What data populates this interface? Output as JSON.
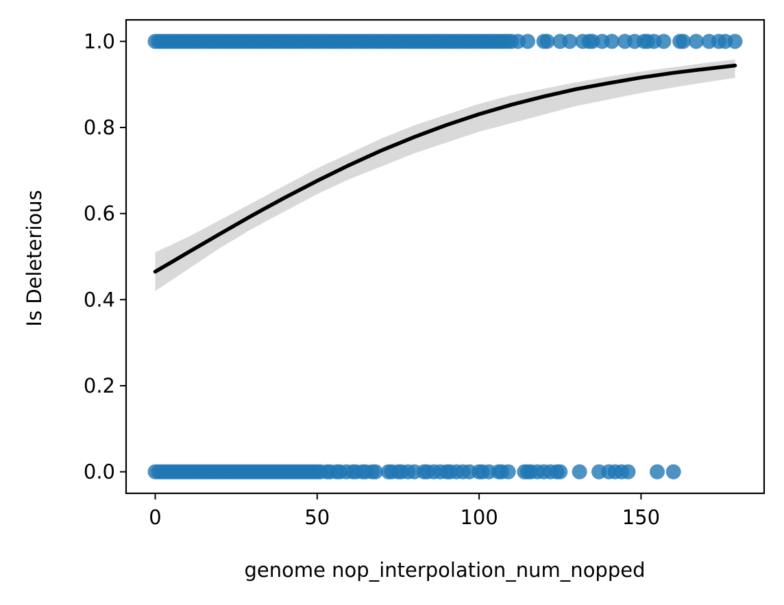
{
  "chart_data": {
    "type": "scatter",
    "title": "",
    "xlabel": "genome nop_interpolation_num_nopped",
    "ylabel": "Is Deleterious",
    "xlim": [
      -9,
      188
    ],
    "ylim": [
      -0.05,
      1.05
    ],
    "xticks": [
      0,
      50,
      100,
      150
    ],
    "xtick_labels": [
      "0",
      "50",
      "100",
      "150"
    ],
    "yticks": [
      0.0,
      0.2,
      0.4,
      0.6,
      0.8,
      1.0
    ],
    "ytick_labels": [
      "0.0",
      "0.2",
      "0.4",
      "0.6",
      "0.8",
      "1.0"
    ],
    "grid": false,
    "point_color": "#1f77b4",
    "fit_color": "#000000",
    "band_color": "#d9d9d9",
    "points_y1": [
      0,
      1,
      2,
      3,
      4,
      5,
      6,
      7,
      8,
      9,
      10,
      11,
      12,
      13,
      14,
      15,
      16,
      17,
      18,
      19,
      20,
      21,
      22,
      23,
      24,
      25,
      26,
      27,
      28,
      29,
      30,
      31,
      32,
      33,
      34,
      35,
      36,
      37,
      38,
      39,
      40,
      41,
      42,
      43,
      44,
      45,
      46,
      47,
      48,
      49,
      50,
      51,
      52,
      53,
      54,
      55,
      56,
      57,
      58,
      59,
      60,
      61,
      62,
      63,
      64,
      65,
      66,
      67,
      68,
      69,
      70,
      71,
      72,
      73,
      74,
      75,
      76,
      77,
      78,
      79,
      80,
      81,
      82,
      83,
      84,
      85,
      86,
      87,
      88,
      89,
      90,
      91,
      92,
      93,
      94,
      95,
      96,
      97,
      98,
      99,
      100,
      101,
      102,
      103,
      104,
      105,
      106,
      107,
      108,
      109,
      110,
      112,
      115,
      120,
      121,
      125,
      128,
      132,
      134,
      135,
      138,
      141,
      145,
      148,
      151,
      152,
      154,
      157,
      162,
      163,
      167,
      171,
      174,
      176,
      179
    ],
    "points_y0": [
      0,
      1,
      2,
      3,
      4,
      5,
      6,
      7,
      8,
      9,
      10,
      11,
      12,
      13,
      14,
      15,
      16,
      17,
      18,
      19,
      20,
      21,
      22,
      23,
      24,
      25,
      26,
      27,
      28,
      29,
      30,
      31,
      32,
      33,
      34,
      35,
      36,
      37,
      38,
      39,
      40,
      41,
      42,
      43,
      44,
      45,
      46,
      47,
      48,
      49,
      50,
      51,
      53,
      54,
      56,
      57,
      59,
      61,
      62,
      64,
      65,
      67,
      68,
      72,
      73,
      75,
      76,
      78,
      80,
      83,
      84,
      86,
      88,
      90,
      91,
      93,
      95,
      97,
      100,
      101,
      103,
      106,
      107,
      109,
      114,
      115,
      116,
      118,
      120,
      122,
      124,
      125,
      131,
      137,
      140,
      142,
      144,
      146,
      155,
      160
    ],
    "fit_curve": {
      "x": [
        0,
        10,
        20,
        30,
        40,
        50,
        60,
        70,
        80,
        90,
        100,
        110,
        120,
        130,
        140,
        150,
        160,
        170,
        179
      ],
      "y": [
        0.465,
        0.509,
        0.553,
        0.596,
        0.637,
        0.676,
        0.713,
        0.747,
        0.778,
        0.806,
        0.831,
        0.853,
        0.872,
        0.889,
        0.903,
        0.916,
        0.927,
        0.936,
        0.944
      ],
      "ci_upper": [
        0.51,
        0.545,
        0.585,
        0.625,
        0.665,
        0.705,
        0.74,
        0.775,
        0.805,
        0.83,
        0.855,
        0.875,
        0.89,
        0.905,
        0.918,
        0.93,
        0.94,
        0.95,
        0.958
      ],
      "ci_lower": [
        0.42,
        0.47,
        0.52,
        0.565,
        0.605,
        0.645,
        0.68,
        0.71,
        0.74,
        0.765,
        0.79,
        0.81,
        0.83,
        0.85,
        0.865,
        0.88,
        0.893,
        0.905,
        0.915
      ]
    }
  }
}
